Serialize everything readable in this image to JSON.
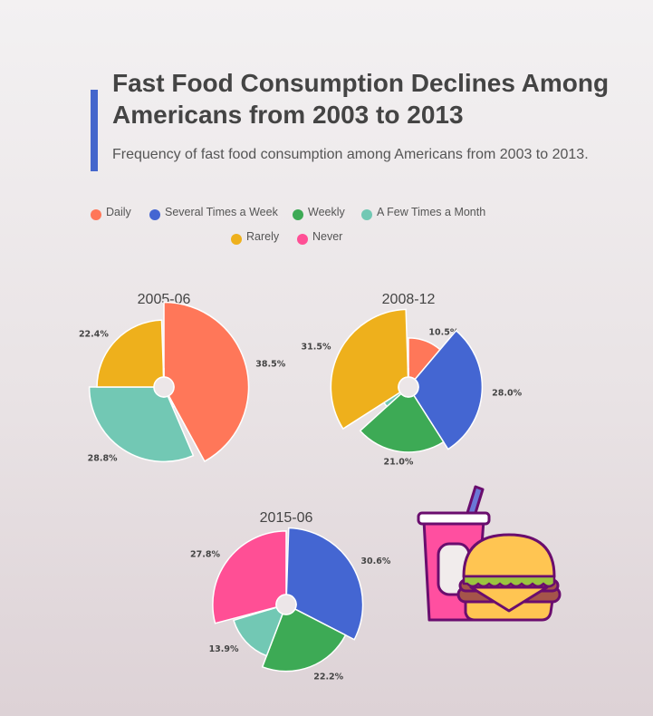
{
  "title": "Fast Food Consumption Declines Among Americans from 2003 to 2013",
  "subtitle": "Frequency of fast food consumption among Americans from 2003 to 2013.",
  "colors": {
    "accent": "#4466cc",
    "Daily": "#ff7759",
    "Several Times a Week": "#4466d2",
    "Weekly": "#3daa55",
    "A Few Times a Month": "#72c8b4",
    "Rarely": "#eeb01c",
    "Never": "#ff4f95"
  },
  "legend": {
    "items": [
      "Daily",
      "Several Times a Week",
      "Weekly",
      "A Few Times a Month",
      "Rarely",
      "Never"
    ],
    "position": "top"
  },
  "illustration": {
    "icon": "fast-food-icon"
  },
  "chart_data": [
    {
      "type": "pie",
      "variant": "rose",
      "title": "2005-06",
      "categories": [
        "Daily",
        "Several Times a Week",
        "Weekly",
        "A Few Times a Month",
        "Rarely",
        "Never"
      ],
      "values": [
        38.5,
        1.0,
        0.4,
        28.8,
        22.4,
        0.5
      ],
      "labels": [
        "38.5%",
        "",
        "",
        "28.8%",
        "22.4%",
        ""
      ]
    },
    {
      "type": "pie",
      "variant": "rose",
      "title": "2008-12",
      "categories": [
        "Daily",
        "Several Times a Week",
        "Weekly",
        "A Few Times a Month",
        "Rarely",
        "Never"
      ],
      "values": [
        10.5,
        28.0,
        21.0,
        2.5,
        31.5,
        0.5
      ],
      "labels": [
        "10.5%",
        "28.0%",
        "21.0%",
        "",
        "31.5%",
        ""
      ]
    },
    {
      "type": "pie",
      "variant": "rose",
      "title": "2015-06",
      "categories": [
        "Daily",
        "Several Times a Week",
        "Weekly",
        "A Few Times a Month",
        "Rarely",
        "Never"
      ],
      "values": [
        0.5,
        30.6,
        22.2,
        13.9,
        0.5,
        27.8
      ],
      "labels": [
        "",
        "30.6%",
        "22.2%",
        "13.9%",
        "",
        "27.8%"
      ]
    }
  ]
}
